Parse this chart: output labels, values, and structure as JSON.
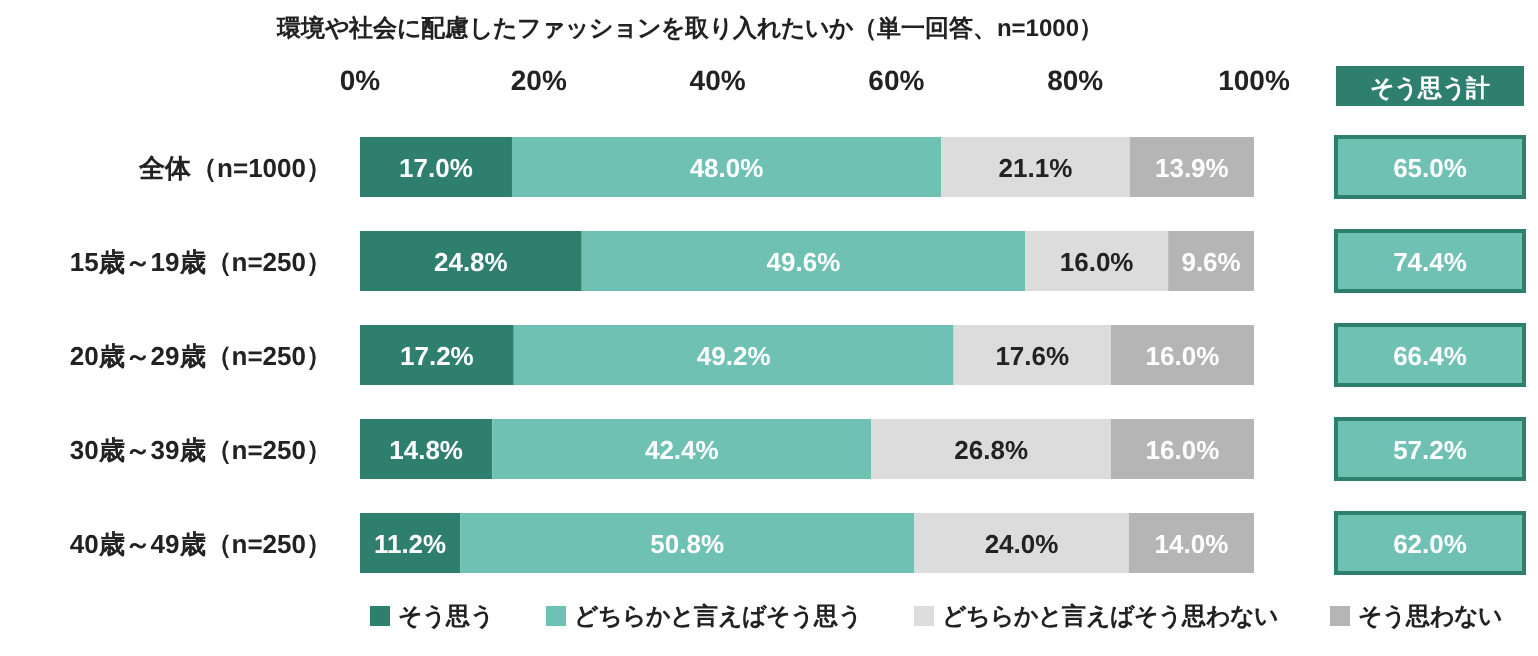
{
  "chart_data": {
    "type": "bar",
    "orientation": "horizontal",
    "stacked": true,
    "title": "環境や社会に配慮したファッションを取り入れたいか（単一回答、n=1000）",
    "categories": [
      "全体（n=1000）",
      "15歳～19歳（n=250）",
      "20歳～29歳（n=250）",
      "30歳～39歳（n=250）",
      "40歳～49歳（n=250）"
    ],
    "series": [
      {
        "name": "そう思う",
        "color": "#2f7f6f",
        "values": [
          17.0,
          24.8,
          17.2,
          14.8,
          11.2
        ],
        "value_labels": [
          "17.0%",
          "24.8%",
          "17.2%",
          "14.8%",
          "11.2%"
        ]
      },
      {
        "name": "どちらかと言えばそう思う",
        "color": "#6fc2b3",
        "values": [
          48.0,
          49.6,
          49.2,
          42.4,
          50.8
        ],
        "value_labels": [
          "48.0%",
          "49.6%",
          "49.2%",
          "42.4%",
          "50.8%"
        ]
      },
      {
        "name": "どちらかと言えばそう思わない",
        "color": "#dcdcdc",
        "values": [
          21.1,
          16.0,
          17.6,
          26.8,
          24.0
        ],
        "value_labels": [
          "21.1%",
          "16.0%",
          "17.6%",
          "26.8%",
          "24.0%"
        ]
      },
      {
        "name": "そう思わない",
        "color": "#b5b5b5",
        "values": [
          13.9,
          9.6,
          16.0,
          16.0,
          14.0
        ],
        "value_labels": [
          "13.9%",
          "9.6%",
          "16.0%",
          "16.0%",
          "14.0%"
        ]
      }
    ],
    "xlim": [
      0,
      100
    ],
    "xticks": [
      {
        "value": 0,
        "label": "0%"
      },
      {
        "value": 20,
        "label": "20%"
      },
      {
        "value": 40,
        "label": "40%"
      },
      {
        "value": 60,
        "label": "60%"
      },
      {
        "value": 80,
        "label": "80%"
      },
      {
        "value": 100,
        "label": "100%"
      }
    ],
    "grid": false,
    "legend": "bottom",
    "annotations": [
      "そう思う計",
      "65.0%",
      "74.4%",
      "66.4%",
      "57.2%",
      "62.0%"
    ]
  }
}
